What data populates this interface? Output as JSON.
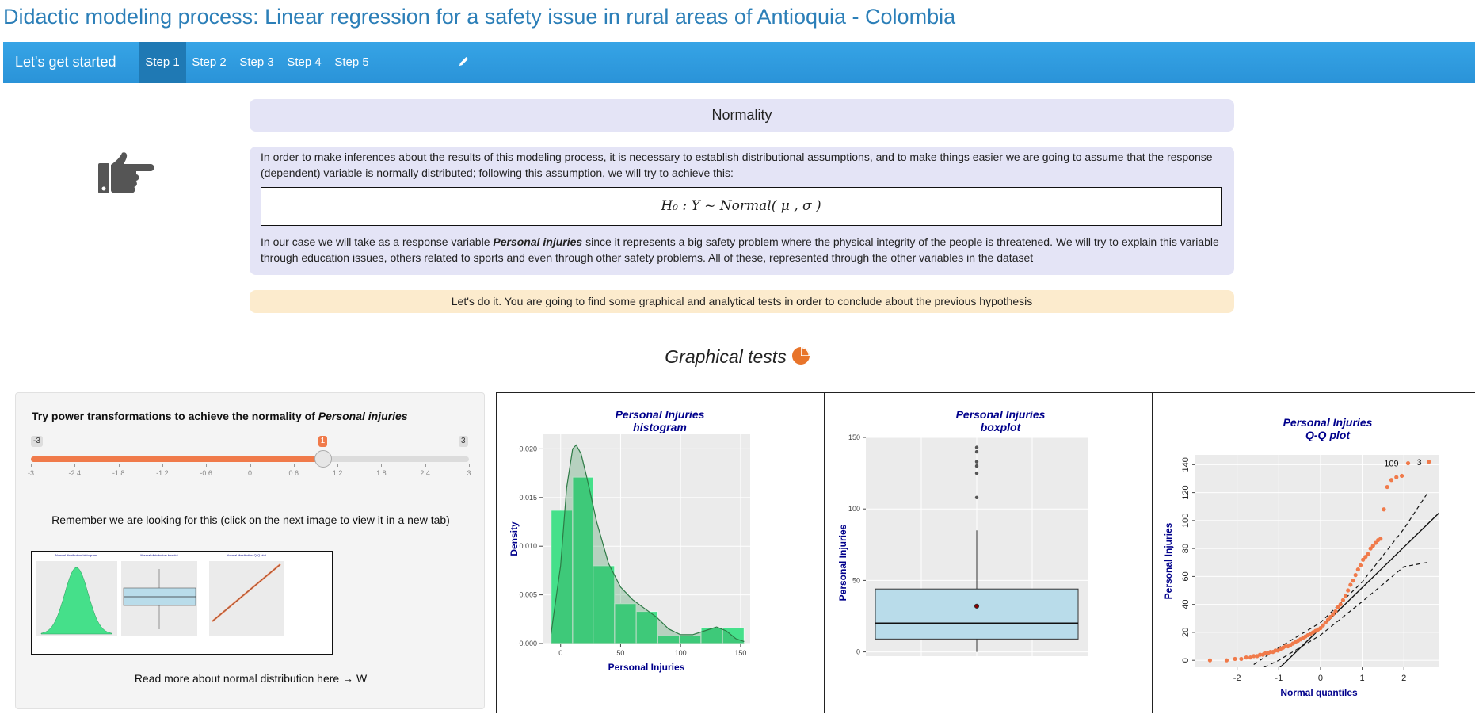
{
  "page": {
    "title": "Didactic modeling process: Linear regression for a safety issue in rural areas of Antioquia - Colombia"
  },
  "navbar": {
    "brand": "Let's get started",
    "home_icon": "home-icon",
    "tabs": [
      {
        "label": "Step 1",
        "active": true
      },
      {
        "label": "Step 2",
        "active": false
      },
      {
        "label": "Step 3",
        "active": false
      },
      {
        "label": "Step 4",
        "active": false
      },
      {
        "label": "Step 5",
        "active": false
      }
    ],
    "edit_icon": "pencil-icon"
  },
  "normality": {
    "title": "Normality",
    "hand_icon": "hand-pointing-right-icon",
    "intro": "In order to make inferences about the results of this modeling process, it is necessary to establish distributional assumptions, and to make things easier we are going to assume that the response (dependent) variable is normally distributed; following this assumption, we will try to achieve this:",
    "formula": "H₀ : Y ~ Normal( μ , σ )",
    "case_before": "In our case we will take as a response variable ",
    "case_var": "Personal injuries",
    "case_after": " since it represents a big safety problem where the physical integrity of the people is threatened. We will try to explain this variable through education issues, others related to sports and even through other safety problems. All of these, represented through the other variables in the dataset",
    "alert": "Let's do it. You are going to find some graphical and analytical tests in order to conclude about the previous hypothesis"
  },
  "graphical": {
    "heading": "Graphical tests",
    "icon": "pie-chart-icon",
    "accent": "#e8742a"
  },
  "sidebar": {
    "label_prefix": "Try power transformations to achieve the normality of ",
    "label_var": "Personal injuries",
    "slider": {
      "min": -3,
      "max": 3,
      "value": 1,
      "min_label": "-3",
      "max_label": "3",
      "value_label": "1",
      "ticks": [
        "-3",
        "-2.4",
        "-1.8",
        "-1.2",
        "-0.6",
        "0",
        "0.6",
        "1.2",
        "1.8",
        "2.4",
        "3"
      ]
    },
    "remember": "Remember we are looking for this (click on the next image to view it in a new tab)",
    "read_more": "Read more about normal distribution here → W",
    "thumb_titles": [
      "Normal distribution histogram",
      "Normal distribution boxplot",
      "Normal distribution Q-Q plot"
    ]
  },
  "colors": {
    "accent": "#f07a4a",
    "navbar": "#2a93d8",
    "bar": "#45e08a",
    "box": "#b9dcea"
  },
  "chart_data": [
    {
      "type": "bar",
      "title": "Personal Injuries\nhistogram",
      "title_l1": "Personal Injuries",
      "title_l2": "histogram",
      "ylabel": "Density",
      "xlabel": "Personal Injuries",
      "bin_edges": [
        -8,
        10,
        27,
        45,
        63,
        81,
        99,
        117,
        135,
        153
      ],
      "values": [
        0.0137,
        0.0171,
        0.008,
        0.0041,
        0.0033,
        0.0008,
        0.0008,
        0.0016,
        0.0016
      ],
      "density_x": [
        -8,
        0,
        5,
        10,
        13,
        17,
        22,
        30,
        40,
        50,
        60,
        70,
        80,
        90,
        100,
        110,
        120,
        130,
        138,
        146,
        153
      ],
      "density_y": [
        0.001,
        0.008,
        0.016,
        0.02,
        0.0204,
        0.0195,
        0.017,
        0.0125,
        0.0082,
        0.0058,
        0.0045,
        0.0036,
        0.0027,
        0.0015,
        0.0009,
        0.0009,
        0.0013,
        0.0017,
        0.0013,
        0.0005,
        0.0002
      ],
      "xlim": [
        -15,
        158
      ],
      "ylim": [
        0,
        0.0215
      ],
      "xticks": [
        0,
        50,
        100,
        150
      ],
      "yticks": [
        0.0,
        0.005,
        0.01,
        0.015,
        0.02
      ],
      "ytick_labels": [
        "0.000",
        "0.005",
        "0.010",
        "0.015",
        "0.020"
      ]
    },
    {
      "type": "box",
      "title_l1": "Personal Injuries",
      "title_l2": "boxplot",
      "ylabel": "Personal Injuries",
      "q1": 9,
      "median": 20,
      "q3": 44,
      "whisker_low": 0,
      "whisker_high": 85,
      "mean": 32,
      "outliers": [
        108,
        125,
        130,
        133,
        140,
        143
      ],
      "ylim": [
        -3,
        150
      ],
      "yticks": [
        0,
        50,
        100,
        150
      ]
    },
    {
      "type": "scatter",
      "title_l1": "Personal Injuries",
      "title_l2": "Q-Q plot",
      "xlabel": "Normal quantiles",
      "ylabel": "Personal Injuries",
      "x": [
        -2.65,
        -2.25,
        -2.05,
        -1.9,
        -1.78,
        -1.68,
        -1.6,
        -1.52,
        -1.45,
        -1.38,
        -1.32,
        -1.26,
        -1.2,
        -1.14,
        -1.08,
        -1.02,
        -0.96,
        -0.9,
        -0.84,
        -0.78,
        -0.72,
        -0.66,
        -0.6,
        -0.54,
        -0.48,
        -0.42,
        -0.36,
        -0.3,
        -0.24,
        -0.18,
        -0.12,
        -0.06,
        0,
        0.06,
        0.12,
        0.18,
        0.24,
        0.3,
        0.36,
        0.42,
        0.48,
        0.54,
        0.6,
        0.66,
        0.72,
        0.78,
        0.84,
        0.9,
        0.96,
        1.02,
        1.08,
        1.14,
        1.2,
        1.26,
        1.32,
        1.38,
        1.44,
        1.52,
        1.6,
        1.7,
        1.82,
        1.95,
        2.1,
        2.6
      ],
      "y": [
        0,
        0,
        1,
        1,
        2,
        2,
        3,
        3,
        4,
        4,
        5,
        5,
        6,
        6,
        7,
        7,
        8,
        9,
        10,
        10,
        11,
        12,
        13,
        14,
        15,
        16,
        17,
        18,
        19,
        20,
        21,
        22,
        23,
        25,
        27,
        29,
        31,
        33,
        35,
        38,
        40,
        43,
        46,
        50,
        54,
        57,
        61,
        65,
        68,
        72,
        74,
        76,
        80,
        82,
        84,
        86,
        87,
        108,
        124,
        129,
        131,
        132,
        141,
        142
      ],
      "point_labels": [
        {
          "text": "109",
          "x": 1.95,
          "y": 141
        },
        {
          "text": "3",
          "x": 2.5,
          "y": 142
        }
      ],
      "xlim": [
        -3.0,
        2.85
      ],
      "ylim": [
        -5,
        147
      ],
      "xticks": [
        -2,
        -1,
        0,
        1,
        2
      ],
      "yticks": [
        0,
        20,
        40,
        60,
        80,
        100,
        120,
        140
      ],
      "ref_line": {
        "intercept": 23,
        "slope": 29
      },
      "envelope_upper": [
        [
          -1.6,
          -3
        ],
        [
          -1,
          9
        ],
        [
          0,
          27
        ],
        [
          1,
          56
        ],
        [
          2,
          94
        ],
        [
          2.55,
          119
        ]
      ],
      "envelope_lower": [
        [
          -1.35,
          -5
        ],
        [
          -1,
          0
        ],
        [
          0,
          18
        ],
        [
          1,
          42
        ],
        [
          2,
          67
        ],
        [
          2.55,
          70
        ]
      ]
    }
  ]
}
